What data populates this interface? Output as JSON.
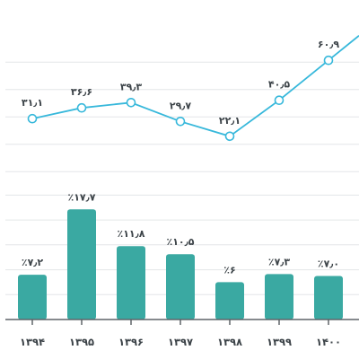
{
  "chart_data": [
    {
      "type": "line",
      "categories": [
        "۱۳۹۴",
        "۱۳۹۵",
        "۱۳۹۶",
        "۱۳۹۷",
        "۱۳۹۸",
        "۱۳۹۹",
        "۱۴۰۰"
      ],
      "values": [
        31.1,
        36.6,
        39.3,
        29.7,
        22.1,
        40.5,
        60.9
      ],
      "value_labels": [
        "۳۱٫۱",
        "۳۶٫۶",
        "۳۹٫۳",
        "۲۹٫۷",
        "۲۲٫۱",
        "۴۰٫۵",
        "۶۰٫۹"
      ],
      "ylim": [
        0,
        70
      ],
      "grid": true,
      "color": "#37b8db"
    },
    {
      "type": "bar",
      "categories": [
        "۱۳۹۴",
        "۱۳۹۵",
        "۱۳۹۶",
        "۱۳۹۷",
        "۱۳۹۸",
        "۱۳۹۹",
        "۱۴۰۰"
      ],
      "values": [
        7.2,
        17.7,
        11.8,
        10.5,
        6,
        7.3,
        7.0
      ],
      "value_labels": [
        "٪۷٫۲",
        "٪۱۷٫۷",
        "٪۱۱٫۸",
        "٪۱۰٫۵",
        "٪۶",
        "٪۷٫۳",
        "٪۷٫۰"
      ],
      "ylim": [
        0,
        21
      ],
      "grid": true,
      "color": "#3aa9a2"
    }
  ]
}
